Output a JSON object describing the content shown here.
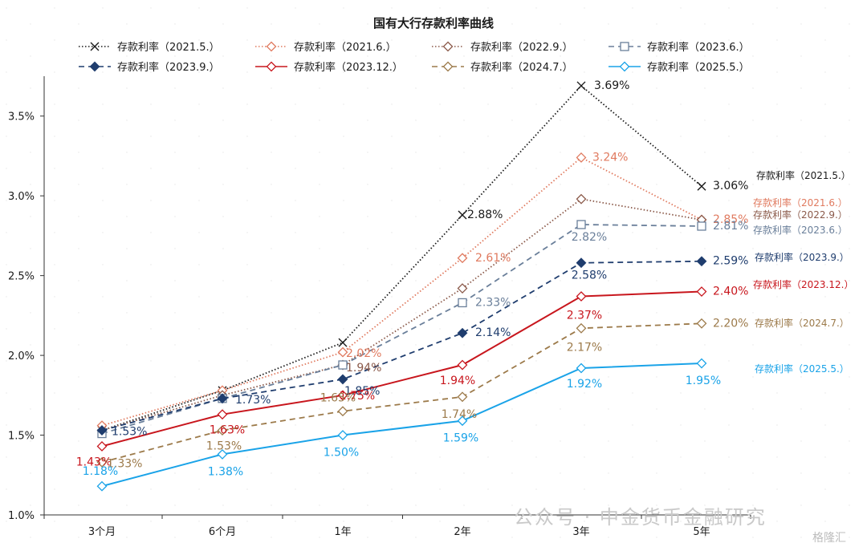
{
  "chart_data": {
    "type": "line",
    "title": "国有大行存款利率曲线",
    "xlabel": "",
    "ylabel": "",
    "categories": [
      "3个月",
      "6个月",
      "1年",
      "2年",
      "3年",
      "5年"
    ],
    "ylim": [
      1.0,
      3.75
    ],
    "yticks": [
      "1.0%",
      "1.5%",
      "2.0%",
      "2.5%",
      "3.0%",
      "3.5%"
    ],
    "ytick_values": [
      1.0,
      1.5,
      2.0,
      2.5,
      3.0,
      3.5
    ],
    "legend_position": "top",
    "series": [
      {
        "name": "存款利率（2021.5.）",
        "right_label": "存款利率（2021.5.）",
        "color": "#1a1a1a",
        "dash": "dotted",
        "marker": "x",
        "values": [
          1.53,
          1.78,
          2.08,
          2.88,
          3.69,
          3.06
        ],
        "labels": [
          "",
          "",
          "",
          "2.88%",
          "3.69%",
          "3.06%"
        ]
      },
      {
        "name": "存款利率（2021.6.）",
        "right_label": "存款利率（2021.6.）",
        "color": "#e07a5f",
        "dash": "dotted",
        "marker": "diamond-open",
        "values": [
          1.56,
          1.78,
          2.02,
          2.61,
          3.24,
          2.85
        ],
        "labels": [
          "",
          "",
          "2.02%",
          "2.61%",
          "3.24%",
          "2.85%"
        ]
      },
      {
        "name": "存款利率（2022.9.）",
        "right_label": "存款利率（2022.9.）",
        "color": "#8b5a4a",
        "dash": "dotted",
        "marker": "diamond-open",
        "values": [
          1.53,
          1.75,
          1.94,
          2.42,
          2.98,
          2.85
        ],
        "labels": [
          "",
          "",
          "1.94%",
          "",
          "",
          ""
        ]
      },
      {
        "name": "存款利率（2023.6.）",
        "right_label": "存款利率（2023.6.）",
        "color": "#6a7f9a",
        "dash": "dashed",
        "marker": "square-open",
        "values": [
          1.51,
          1.73,
          1.94,
          2.33,
          2.82,
          2.81
        ],
        "labels": [
          "",
          "",
          "",
          "2.33%",
          "2.82%",
          "2.81%"
        ]
      },
      {
        "name": "存款利率（2023.9.）",
        "right_label": "存款利率（2023.9.）",
        "color": "#1f3d6e",
        "dash": "dashed",
        "marker": "diamond-filled",
        "values": [
          1.53,
          1.73,
          1.85,
          2.14,
          2.58,
          2.59
        ],
        "labels": [
          "1.53%",
          "1.73%",
          "1.85%",
          "2.14%",
          "2.58%",
          "2.59%"
        ]
      },
      {
        "name": "存款利率（2023.12.）",
        "right_label": "存款利率（2023.12.）",
        "color": "#c8161d",
        "dash": "solid",
        "marker": "diamond-open",
        "values": [
          1.43,
          1.63,
          1.75,
          1.94,
          2.37,
          2.4
        ],
        "labels": [
          "1.43%",
          "1.63%",
          "1.75%",
          "1.94%",
          "2.37%",
          "2.40%"
        ]
      },
      {
        "name": "存款利率（2024.7.）",
        "right_label": "存款利率（2024.7.）",
        "color": "#9c7a4a",
        "dash": "dashed",
        "marker": "diamond-open",
        "values": [
          1.33,
          1.53,
          1.65,
          1.74,
          2.17,
          2.2
        ],
        "labels": [
          "1.33%",
          "1.53%",
          "1.65%",
          "1.74%",
          "2.17%",
          "2.20%"
        ]
      },
      {
        "name": "存款利率（2025.5.）",
        "right_label": "存款利率（2025.5.）",
        "color": "#1aa3e8",
        "dash": "solid",
        "marker": "diamond-open",
        "values": [
          1.18,
          1.38,
          1.5,
          1.59,
          1.92,
          1.95
        ],
        "labels": [
          "1.18%",
          "1.38%",
          "1.50%",
          "1.59%",
          "1.92%",
          "1.95%"
        ]
      }
    ]
  },
  "watermark": {
    "text": "公众号 · 中金货币金融研究",
    "corner": "格隆汇"
  }
}
